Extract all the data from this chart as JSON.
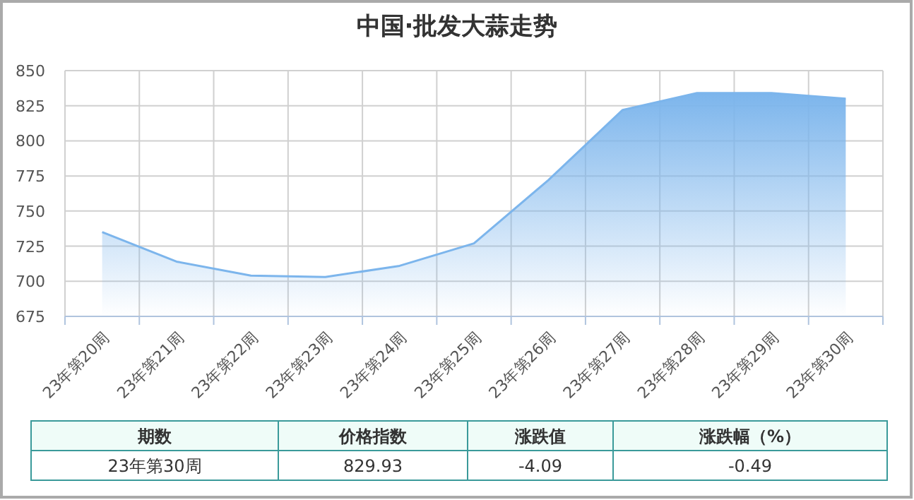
{
  "chart_data": {
    "type": "area",
    "title": "中国·批发大蒜走势",
    "categories": [
      "23年第20周",
      "23年第21周",
      "23年第22周",
      "23年第23周",
      "23年第24周",
      "23年第25周",
      "23年第26周",
      "23年第27周",
      "23年第28周",
      "23年第29周",
      "23年第30周"
    ],
    "series": [
      {
        "color": "#7cb5ec",
        "values": [
          735,
          714,
          704,
          703,
          711,
          727,
          772,
          822,
          834,
          834,
          830
        ]
      }
    ],
    "ylim": [
      675,
      850
    ],
    "yticks": [
      675,
      700,
      725,
      750,
      775,
      800,
      825,
      850
    ],
    "grid": true,
    "annotations": [
      "期数",
      "价格指数",
      "涨跌值",
      "涨跌幅（%）",
      "23年第30周",
      "829.93",
      "-4.09",
      "-0.49"
    ]
  }
}
